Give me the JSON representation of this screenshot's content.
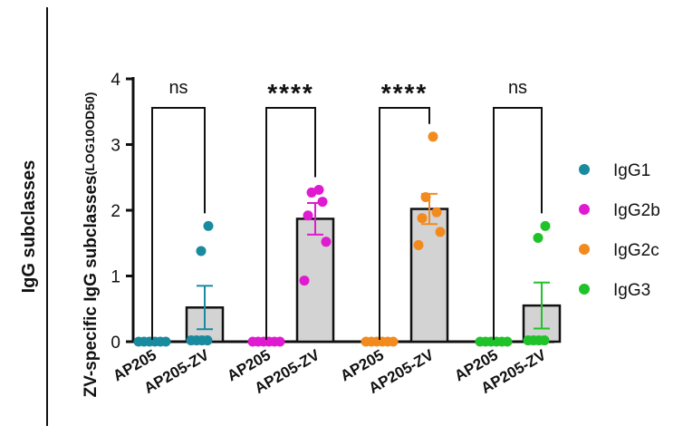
{
  "chart_data": {
    "type": "bar",
    "title": "",
    "outer_label": "IgG subclasses",
    "ylabel_main": "ZV-specific IgG subclasses",
    "ylabel_sub": "(LOG10OD50)",
    "ylim": [
      0,
      4
    ],
    "yticks": [
      "0",
      "1",
      "2",
      "3",
      "4"
    ],
    "groups": [
      {
        "name": "IgG1",
        "color": "#1a8a9e",
        "significance": "ns",
        "bars": [
          {
            "category": "AP205",
            "mean": 0,
            "sem": 0,
            "points": [
              0,
              0,
              0,
              0,
              0,
              0
            ]
          },
          {
            "category": "AP205-ZV",
            "mean": 0.52,
            "sem": 0.33,
            "points": [
              0.02,
              0.02,
              0.02,
              0.02,
              1.38,
              1.76
            ]
          }
        ]
      },
      {
        "name": "IgG2b",
        "color": "#e01ad0",
        "significance": "****",
        "bars": [
          {
            "category": "AP205",
            "mean": 0,
            "sem": 0,
            "points": [
              0,
              0,
              0,
              0,
              0,
              0
            ]
          },
          {
            "category": "AP205-ZV",
            "mean": 1.87,
            "sem": 0.24,
            "points": [
              0.93,
              1.52,
              1.92,
              2.13,
              2.27,
              2.31
            ]
          }
        ]
      },
      {
        "name": "IgG2c",
        "color": "#f28a1e",
        "significance": "****",
        "bars": [
          {
            "category": "AP205",
            "mean": 0,
            "sem": 0,
            "points": [
              0,
              0,
              0,
              0,
              0,
              0
            ]
          },
          {
            "category": "AP205-ZV",
            "mean": 2.02,
            "sem": 0.23,
            "points": [
              1.47,
              1.67,
              1.88,
              1.97,
              2.2,
              3.12
            ]
          }
        ]
      },
      {
        "name": "IgG3",
        "color": "#20c22a",
        "significance": "ns",
        "bars": [
          {
            "category": "AP205",
            "mean": 0,
            "sem": 0,
            "points": [
              0,
              0,
              0,
              0,
              0,
              0
            ]
          },
          {
            "category": "AP205-ZV",
            "mean": 0.55,
            "sem": 0.35,
            "points": [
              0.02,
              0.02,
              0.02,
              0.02,
              1.58,
              1.76
            ]
          }
        ]
      }
    ],
    "legend": [
      {
        "label": "IgG1",
        "color": "#1a8a9e"
      },
      {
        "label": "IgG2b",
        "color": "#e01ad0"
      },
      {
        "label": "IgG2c",
        "color": "#f28a1e"
      },
      {
        "label": "IgG3",
        "color": "#20c22a"
      }
    ],
    "legend_position": "right"
  }
}
